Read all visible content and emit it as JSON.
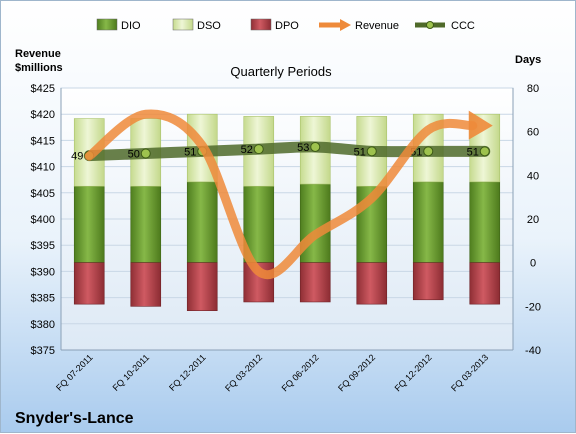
{
  "company": "Snyder's-Lance",
  "chart_data": {
    "type": "bar",
    "title": "",
    "subtitle": "Quarterly Periods",
    "left_axis_title": [
      "Revenue",
      "$millions"
    ],
    "right_axis_title": "Days",
    "categories": [
      "FQ 07-2011",
      "FQ 10-2011",
      "FQ 12-2011",
      "FQ 03-2012",
      "FQ 06-2012",
      "FQ 09-2012",
      "FQ 12-2012",
      "FQ 03-2013"
    ],
    "left_ylim": [
      375,
      425
    ],
    "left_ticks": [
      "$425",
      "$420",
      "$415",
      "$410",
      "$405",
      "$400",
      "$395",
      "$390",
      "$385",
      "$380",
      "$375"
    ],
    "right_ylim": [
      -40,
      80
    ],
    "right_ticks": [
      "80",
      "60",
      "40",
      "20",
      "0",
      "-20",
      "-40"
    ],
    "legend": [
      "DIO",
      "DSO",
      "DPO",
      "Revenue",
      "CCC"
    ],
    "legend_position": "top",
    "series": [
      {
        "name": "DIO",
        "axis": "right",
        "values": [
          35,
          35,
          37,
          35,
          36,
          35,
          37,
          37
        ]
      },
      {
        "name": "DSO",
        "axis": "right",
        "values": [
          31,
          31,
          31,
          32,
          31,
          32,
          31,
          31
        ]
      },
      {
        "name": "DPO",
        "axis": "right",
        "values": [
          -19,
          -20,
          -22,
          -18,
          -18,
          -19,
          -17,
          -19
        ]
      },
      {
        "name": "Revenue",
        "axis": "left",
        "values": [
          412,
          420,
          414,
          390,
          397,
          404,
          417,
          418
        ]
      },
      {
        "name": "CCC",
        "axis": "right",
        "values": [
          49,
          50,
          51,
          52,
          53,
          51,
          51,
          51
        ]
      }
    ],
    "ccc_labels": [
      "49",
      "50",
      "51",
      "52",
      "53",
      "51",
      "51",
      "51"
    ],
    "colors": {
      "DIO": "#6a9e2e",
      "DSO": "#dbeab0",
      "DPO": "#b5444c",
      "Revenue": "#ee8a3a",
      "CCC": "#4f6a2a"
    }
  }
}
